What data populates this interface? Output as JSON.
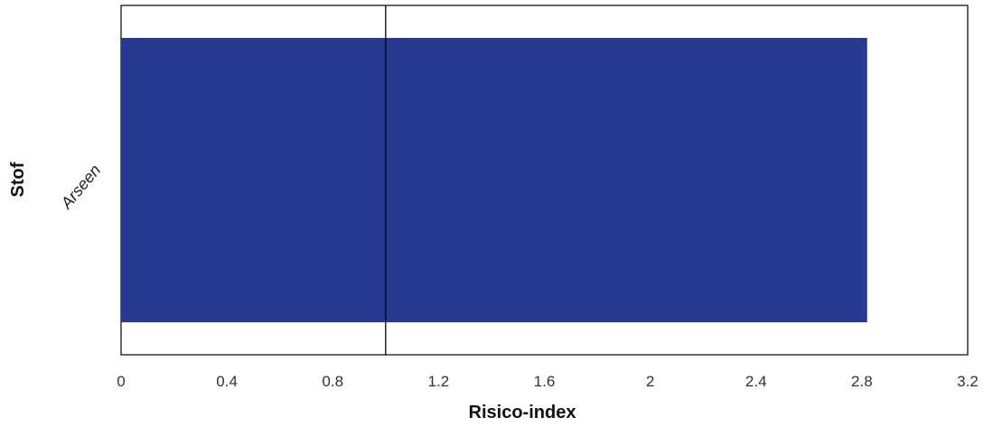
{
  "chart_data": {
    "type": "bar",
    "orientation": "horizontal",
    "categories": [
      "Arseen"
    ],
    "values": [
      2.82
    ],
    "reference_line": 1,
    "xlabel": "Risico-index",
    "ylabel": "Stof",
    "xlim": [
      0,
      3.2
    ],
    "xticks": [
      "0",
      "0.4",
      "0.8",
      "1.2",
      "1.6",
      "2",
      "2.4",
      "2.8",
      "3.2"
    ],
    "grid": false,
    "bar_color": "#273a91",
    "line_color": "#000000"
  }
}
